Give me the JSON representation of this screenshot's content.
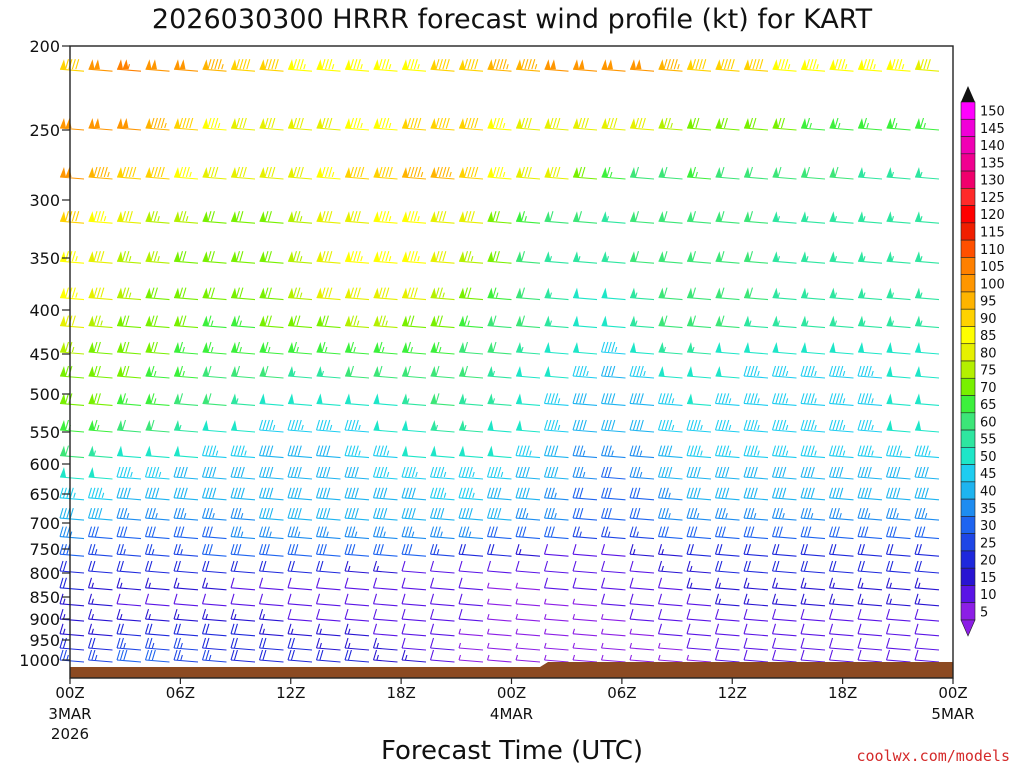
{
  "chart_data": {
    "type": "wind-barb-time-height",
    "title": "2026030300 HRRR forecast wind profile (kt) for KART",
    "xlabel": "Forecast Time (UTC)",
    "ylabel": "",
    "y_axis": {
      "type": "pressure",
      "reversed": true,
      "ticks": [
        "200",
        "250",
        "300",
        "350",
        "400",
        "450",
        "500",
        "550",
        "600",
        "650",
        "700",
        "750",
        "800",
        "850",
        "900",
        "950",
        "1000"
      ],
      "values": [
        200,
        250,
        300,
        350,
        400,
        450,
        500,
        550,
        600,
        650,
        700,
        750,
        800,
        850,
        900,
        950,
        1000
      ]
    },
    "x_axis": {
      "ticks": [
        {
          "label": "00Z",
          "sub1": "3MAR",
          "sub2": "2026",
          "hour": 0
        },
        {
          "label": "06Z",
          "sub1": "",
          "sub2": "",
          "hour": 6
        },
        {
          "label": "12Z",
          "sub1": "",
          "sub2": "",
          "hour": 12
        },
        {
          "label": "18Z",
          "sub1": "",
          "sub2": "",
          "hour": 18
        },
        {
          "label": "00Z",
          "sub1": "4MAR",
          "sub2": "",
          "hour": 24
        },
        {
          "label": "06Z",
          "sub1": "",
          "sub2": "",
          "hour": 30
        },
        {
          "label": "12Z",
          "sub1": "",
          "sub2": "",
          "hour": 36
        },
        {
          "label": "18Z",
          "sub1": "",
          "sub2": "",
          "hour": 42
        },
        {
          "label": "00Z",
          "sub1": "5MAR",
          "sub2": "",
          "hour": 48
        }
      ],
      "range_hours": [
        0,
        48
      ]
    },
    "colorbar": {
      "units": "kt",
      "labels": [
        "150",
        "145",
        "140",
        "135",
        "130",
        "125",
        "120",
        "115",
        "110",
        "105",
        "100",
        "95",
        "90",
        "85",
        "80",
        "75",
        "70",
        "65",
        "60",
        "55",
        "50",
        "45",
        "40",
        "35",
        "30",
        "25",
        "20",
        "15",
        "10",
        "5"
      ],
      "colors": [
        "#ff00ff",
        "#f000d8",
        "#f000b4",
        "#f00090",
        "#f0006c",
        "#ff2a2a",
        "#ff0000",
        "#f01e00",
        "#ff5000",
        "#ff8000",
        "#ff9600",
        "#ffb400",
        "#ffd200",
        "#ffff00",
        "#e6f000",
        "#b4f000",
        "#78f000",
        "#3cf03c",
        "#3ce678",
        "#2ee6a0",
        "#1ee6c8",
        "#1ecdf0",
        "#1eb4f0",
        "#1e8cf0",
        "#1e64f0",
        "#1e46e6",
        "#1e28dc",
        "#2814d2",
        "#5a14e6",
        "#8c1ee6"
      ]
    },
    "wind_rows": [
      {
        "pressure": 215,
        "speeds": [
          92,
          100,
          104,
          102,
          98,
          95,
          92,
          88,
          86,
          85,
          84,
          84,
          86,
          88,
          92,
          95,
          96,
          98,
          100,
          100,
          98,
          95,
          92,
          90,
          88,
          86,
          85,
          84,
          84,
          83,
          82
        ]
      },
      {
        "pressure": 250,
        "speeds": [
          100,
          102,
          100,
          95,
          90,
          86,
          82,
          80,
          80,
          82,
          84,
          86,
          88,
          90,
          88,
          86,
          82,
          80,
          80,
          82,
          78,
          74,
          72,
          70,
          68,
          68,
          66,
          66,
          65,
          64,
          64
        ]
      },
      {
        "pressure": 285,
        "speeds": [
          100,
          96,
          92,
          88,
          85,
          82,
          80,
          80,
          82,
          85,
          88,
          92,
          96,
          94,
          90,
          86,
          82,
          78,
          70,
          64,
          62,
          62,
          63,
          62,
          60,
          60,
          58,
          58,
          56,
          56,
          56
        ]
      },
      {
        "pressure": 320,
        "speeds": [
          88,
          84,
          80,
          76,
          74,
          72,
          70,
          70,
          74,
          78,
          82,
          86,
          86,
          82,
          78,
          72,
          66,
          60,
          58,
          56,
          58,
          60,
          60,
          60,
          58,
          56,
          55,
          55,
          55,
          54,
          54
        ]
      },
      {
        "pressure": 355,
        "speeds": [
          84,
          80,
          76,
          74,
          72,
          70,
          70,
          72,
          76,
          80,
          84,
          86,
          84,
          80,
          74,
          68,
          62,
          56,
          54,
          54,
          58,
          62,
          62,
          60,
          58,
          56,
          56,
          55,
          55,
          55,
          54
        ]
      },
      {
        "pressure": 390,
        "speeds": [
          84,
          78,
          74,
          72,
          70,
          68,
          68,
          70,
          74,
          78,
          80,
          80,
          78,
          74,
          70,
          66,
          60,
          56,
          52,
          50,
          56,
          60,
          62,
          60,
          58,
          56,
          56,
          55,
          55,
          55,
          54
        ]
      },
      {
        "pressure": 420,
        "speeds": [
          82,
          76,
          72,
          70,
          68,
          66,
          66,
          68,
          70,
          72,
          74,
          74,
          72,
          70,
          66,
          62,
          58,
          54,
          50,
          48,
          54,
          58,
          60,
          58,
          56,
          55,
          55,
          54,
          54,
          54,
          53
        ]
      },
      {
        "pressure": 450,
        "speeds": [
          76,
          72,
          70,
          68,
          66,
          64,
          64,
          64,
          64,
          66,
          66,
          66,
          66,
          64,
          62,
          60,
          56,
          52,
          48,
          46,
          50,
          54,
          54,
          52,
          50,
          50,
          50,
          50,
          50,
          50,
          50
        ]
      },
      {
        "pressure": 480,
        "speeds": [
          72,
          70,
          68,
          66,
          64,
          62,
          60,
          58,
          56,
          56,
          58,
          58,
          60,
          60,
          58,
          56,
          52,
          48,
          44,
          42,
          46,
          50,
          50,
          48,
          46,
          46,
          46,
          46,
          47,
          48,
          48
        ]
      },
      {
        "pressure": 515,
        "speeds": [
          70,
          68,
          66,
          64,
          62,
          58,
          54,
          50,
          48,
          48,
          50,
          52,
          56,
          58,
          56,
          54,
          50,
          46,
          42,
          40,
          42,
          46,
          48,
          46,
          46,
          46,
          46,
          46,
          47,
          48,
          48
        ]
      },
      {
        "pressure": 550,
        "speeds": [
          66,
          64,
          62,
          60,
          56,
          52,
          48,
          46,
          44,
          44,
          46,
          48,
          52,
          56,
          54,
          52,
          48,
          44,
          40,
          38,
          40,
          44,
          46,
          46,
          46,
          46,
          46,
          46,
          47,
          48,
          48
        ]
      },
      {
        "pressure": 590,
        "speeds": [
          60,
          56,
          52,
          50,
          48,
          46,
          44,
          42,
          42,
          42,
          44,
          46,
          48,
          50,
          50,
          48,
          44,
          40,
          36,
          34,
          36,
          40,
          44,
          44,
          44,
          44,
          44,
          44,
          45,
          46,
          46
        ]
      },
      {
        "pressure": 625,
        "speeds": [
          52,
          48,
          46,
          44,
          42,
          40,
          40,
          40,
          40,
          42,
          42,
          44,
          44,
          46,
          46,
          44,
          42,
          38,
          34,
          32,
          34,
          38,
          40,
          40,
          40,
          40,
          40,
          40,
          41,
          42,
          42
        ]
      },
      {
        "pressure": 660,
        "speeds": [
          46,
          44,
          42,
          40,
          38,
          38,
          38,
          38,
          40,
          40,
          42,
          42,
          42,
          44,
          44,
          42,
          40,
          36,
          32,
          30,
          32,
          36,
          38,
          38,
          38,
          38,
          38,
          38,
          39,
          40,
          40
        ]
      },
      {
        "pressure": 695,
        "speeds": [
          40,
          38,
          36,
          36,
          36,
          36,
          36,
          38,
          38,
          40,
          40,
          40,
          40,
          40,
          40,
          38,
          36,
          34,
          30,
          28,
          30,
          34,
          36,
          36,
          36,
          36,
          36,
          36,
          36,
          36,
          36
        ]
      },
      {
        "pressure": 730,
        "speeds": [
          34,
          32,
          32,
          32,
          32,
          32,
          34,
          34,
          36,
          36,
          36,
          36,
          36,
          36,
          34,
          32,
          30,
          28,
          26,
          24,
          26,
          28,
          30,
          30,
          30,
          30,
          30,
          30,
          30,
          30,
          30
        ]
      },
      {
        "pressure": 765,
        "speeds": [
          28,
          26,
          26,
          26,
          26,
          28,
          28,
          30,
          30,
          30,
          30,
          30,
          28,
          26,
          22,
          18,
          14,
          12,
          12,
          12,
          14,
          16,
          18,
          20,
          20,
          20,
          20,
          20,
          20,
          20,
          20
        ]
      },
      {
        "pressure": 800,
        "speeds": [
          22,
          20,
          20,
          20,
          20,
          20,
          20,
          20,
          20,
          18,
          16,
          14,
          12,
          10,
          8,
          8,
          8,
          10,
          10,
          10,
          12,
          14,
          16,
          18,
          18,
          18,
          18,
          18,
          18,
          18,
          18
        ]
      },
      {
        "pressure": 835,
        "speeds": [
          18,
          16,
          16,
          14,
          14,
          14,
          12,
          12,
          10,
          10,
          10,
          10,
          10,
          10,
          8,
          6,
          6,
          8,
          8,
          8,
          10,
          12,
          14,
          16,
          16,
          16,
          16,
          16,
          16,
          16,
          16
        ]
      },
      {
        "pressure": 870,
        "speeds": [
          14,
          14,
          12,
          12,
          12,
          12,
          12,
          12,
          10,
          10,
          10,
          10,
          10,
          10,
          8,
          6,
          6,
          6,
          6,
          8,
          8,
          10,
          12,
          14,
          14,
          14,
          14,
          14,
          14,
          14,
          14
        ]
      },
      {
        "pressure": 905,
        "speeds": [
          14,
          14,
          14,
          14,
          14,
          14,
          14,
          14,
          12,
          12,
          12,
          12,
          10,
          10,
          8,
          6,
          6,
          6,
          6,
          6,
          8,
          8,
          10,
          12,
          12,
          12,
          12,
          12,
          12,
          12,
          12
        ]
      },
      {
        "pressure": 940,
        "speeds": [
          16,
          16,
          18,
          18,
          18,
          18,
          18,
          16,
          16,
          14,
          14,
          12,
          10,
          8,
          6,
          6,
          5,
          5,
          5,
          6,
          6,
          8,
          8,
          10,
          10,
          10,
          10,
          10,
          10,
          10,
          10
        ]
      },
      {
        "pressure": 975,
        "speeds": [
          20,
          22,
          24,
          24,
          24,
          22,
          20,
          18,
          18,
          16,
          16,
          14,
          12,
          8,
          6,
          5,
          5,
          5,
          5,
          5,
          6,
          6,
          8,
          8,
          8,
          8,
          8,
          8,
          8,
          8,
          8
        ]
      },
      {
        "pressure": 1005,
        "speeds": [
          24,
          26,
          28,
          28,
          26,
          24,
          22,
          20,
          20,
          18,
          18,
          16,
          14,
          10,
          6,
          5,
          5,
          5,
          5,
          5,
          5,
          6,
          6,
          8,
          8,
          8,
          8,
          8,
          8,
          8,
          8
        ]
      }
    ],
    "ground": {
      "color": "#8c4a22"
    }
  },
  "footer": {
    "credit": "coolwx.com/models"
  }
}
